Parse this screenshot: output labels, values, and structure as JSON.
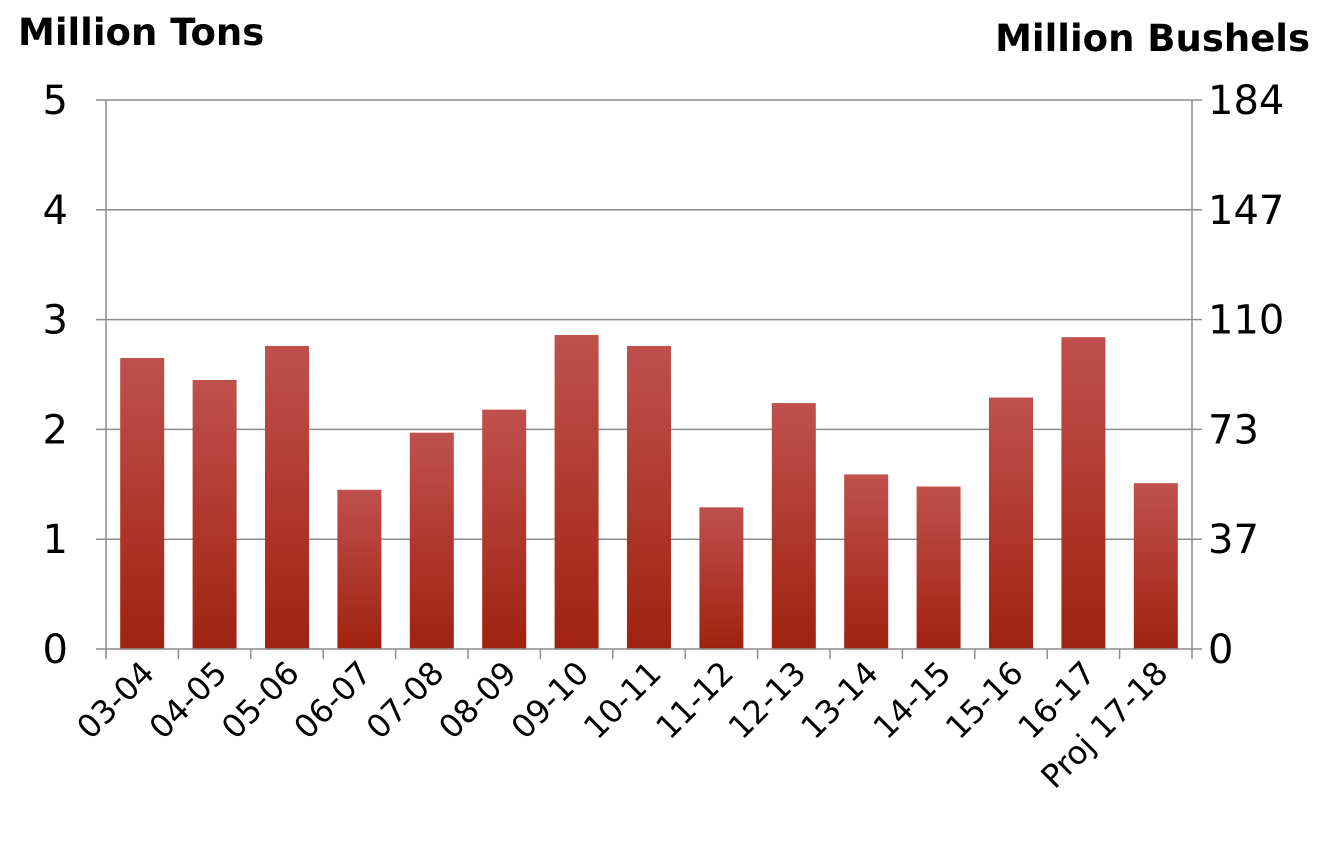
{
  "chart_data": {
    "type": "bar",
    "left_axis_title": "Million Tons",
    "right_axis_title": "Million Bushels",
    "categories": [
      "03-04",
      "04-05",
      "05-06",
      "06-07",
      "07-08",
      "08-09",
      "09-10",
      "10-11",
      "11-12",
      "12-13",
      "13-14",
      "14-15",
      "15-16",
      "16-17",
      "Proj 17-18"
    ],
    "values": [
      2.65,
      2.45,
      2.76,
      1.45,
      1.97,
      2.18,
      2.86,
      2.76,
      1.29,
      2.24,
      1.59,
      1.48,
      2.29,
      2.84,
      1.51
    ],
    "ylim": [
      0,
      5
    ],
    "left_ticks": [
      "0",
      "1",
      "2",
      "3",
      "4",
      "5"
    ],
    "right_ticks": [
      "0",
      "37",
      "73",
      "110",
      "147",
      "184"
    ],
    "grid": true,
    "bar_color": "#a82a1c"
  }
}
